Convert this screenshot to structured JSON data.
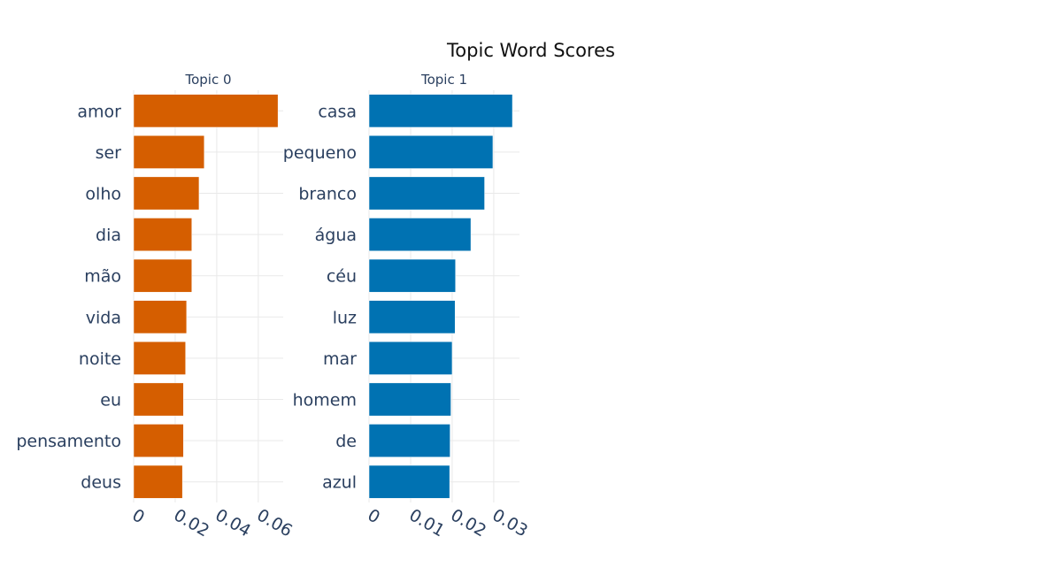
{
  "chart_data": {
    "type": "bar",
    "orientation": "horizontal",
    "title": "Topic Word Scores",
    "panels": [
      {
        "subtitle": "Topic 0",
        "color": "#D55E00",
        "categories": [
          "amor",
          "ser",
          "olho",
          "dia",
          "mão",
          "vida",
          "noite",
          "eu",
          "pensamento",
          "deus"
        ],
        "values": [
          0.0695,
          0.034,
          0.0315,
          0.028,
          0.028,
          0.0255,
          0.025,
          0.024,
          0.024,
          0.0235
        ],
        "xlim": [
          0,
          0.072
        ],
        "xticks": [
          0,
          0.02,
          0.04,
          0.06
        ],
        "xtick_labels": [
          "0",
          "0.02",
          "0.04",
          "0.06"
        ]
      },
      {
        "subtitle": "Topic 1",
        "color": "#0072B2",
        "categories": [
          "casa",
          "pequeno",
          "branco",
          "água",
          "céu",
          "luz",
          "mar",
          "homem",
          "de",
          "azul"
        ],
        "values": [
          0.0345,
          0.0298,
          0.0278,
          0.0245,
          0.0208,
          0.0207,
          0.02,
          0.0197,
          0.0195,
          0.0194
        ],
        "xlim": [
          0,
          0.0362
        ],
        "xticks": [
          0,
          0.01,
          0.02,
          0.03
        ],
        "xtick_labels": [
          "0",
          "0.01",
          "0.02",
          "0.03"
        ]
      }
    ],
    "grid": true,
    "legend": "none"
  }
}
